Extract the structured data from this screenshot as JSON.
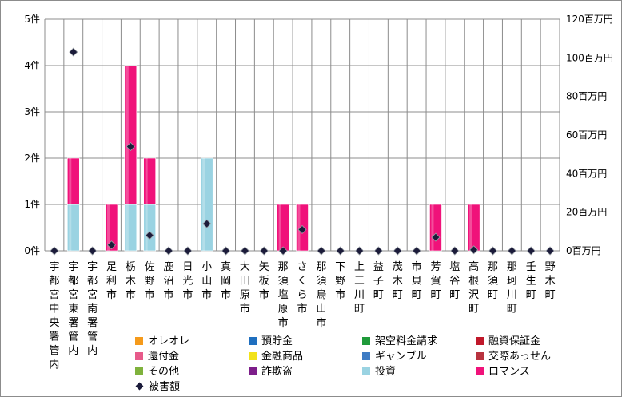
{
  "chart_data": {
    "type": "bar",
    "stacked": true,
    "categories": [
      "宇都宮中央署管内",
      "宇都宮東署管内",
      "宇都宮南署管内",
      "足利市",
      "栃木市",
      "佐野市",
      "鹿沼市",
      "日光市",
      "小山市",
      "真岡市",
      "大田原市",
      "矢板市",
      "那須塩原市",
      "さくら市",
      "那須烏山市",
      "下野市",
      "上三川町",
      "益子町",
      "茂木町",
      "市貝町",
      "芳賀町",
      "塩谷町",
      "高根沢町",
      "那須町",
      "那珂川町",
      "壬生町",
      "野木町"
    ],
    "yaxis_left": {
      "ticks": [
        "0件",
        "1件",
        "2件",
        "3件",
        "4件",
        "5件"
      ],
      "ylim": [
        0,
        5
      ]
    },
    "yaxis_right": {
      "ticks": [
        "0百万円",
        "20百万円",
        "40百万円",
        "60百万円",
        "80百万円",
        "100百万円",
        "120百万円"
      ],
      "ylim": [
        0,
        120
      ]
    },
    "series": [
      {
        "name": "オレオレ",
        "color": "#f59a1b",
        "values": [
          0,
          0,
          0,
          0,
          0,
          0,
          0,
          0,
          0,
          0,
          0,
          0,
          0,
          0,
          0,
          0,
          0,
          0,
          0,
          0,
          0,
          0,
          0,
          0,
          0,
          0,
          0
        ]
      },
      {
        "name": "預貯金",
        "color": "#1f6fbf",
        "values": [
          0,
          0,
          0,
          0,
          0,
          0,
          0,
          0,
          0,
          0,
          0,
          0,
          0,
          0,
          0,
          0,
          0,
          0,
          0,
          0,
          0,
          0,
          0,
          0,
          0,
          0,
          0
        ]
      },
      {
        "name": "架空料金請求",
        "color": "#1f9a3a",
        "values": [
          0,
          0,
          0,
          0,
          0,
          0,
          0,
          0,
          0,
          0,
          0,
          0,
          0,
          0,
          0,
          0,
          0,
          0,
          0,
          0,
          0,
          0,
          0,
          0,
          0,
          0,
          0
        ]
      },
      {
        "name": "融資保証金",
        "color": "#c0182a",
        "values": [
          0,
          0,
          0,
          0,
          0,
          0,
          0,
          0,
          0,
          0,
          0,
          0,
          0,
          0,
          0,
          0,
          0,
          0,
          0,
          0,
          0,
          0,
          0,
          0,
          0,
          0,
          0
        ]
      },
      {
        "name": "還付金",
        "color": "#e75a8a",
        "values": [
          0,
          0,
          0,
          0,
          0,
          0,
          0,
          0,
          0,
          0,
          0,
          0,
          0,
          0,
          0,
          0,
          0,
          0,
          0,
          0,
          0,
          0,
          0,
          0,
          0,
          0,
          0
        ]
      },
      {
        "name": "金融商品",
        "color": "#f2e21a",
        "values": [
          0,
          0,
          0,
          0,
          0,
          0,
          0,
          0,
          0,
          0,
          0,
          0,
          0,
          0,
          0,
          0,
          0,
          0,
          0,
          0,
          0,
          0,
          0,
          0,
          0,
          0,
          0
        ]
      },
      {
        "name": "ギャンブル",
        "color": "#3e7cc4",
        "values": [
          0,
          0,
          0,
          0,
          0,
          0,
          0,
          0,
          0,
          0,
          0,
          0,
          0,
          0,
          0,
          0,
          0,
          0,
          0,
          0,
          0,
          0,
          0,
          0,
          0,
          0,
          0
        ]
      },
      {
        "name": "交際あっせん",
        "color": "#b8333f",
        "values": [
          0,
          0,
          0,
          0,
          0,
          0,
          0,
          0,
          0,
          0,
          0,
          0,
          0,
          0,
          0,
          0,
          0,
          0,
          0,
          0,
          0,
          0,
          0,
          0,
          0,
          0,
          0
        ]
      },
      {
        "name": "その他",
        "color": "#7fb23c",
        "values": [
          0,
          0,
          0,
          0,
          0,
          0,
          0,
          0,
          0,
          0,
          0,
          0,
          0,
          0,
          0,
          0,
          0,
          0,
          0,
          0,
          0,
          0,
          0,
          0,
          0,
          0,
          0
        ]
      },
      {
        "name": "詐欺盗",
        "color": "#7d1e8a",
        "values": [
          0,
          0,
          0,
          0,
          0,
          0,
          0,
          0,
          0,
          0,
          0,
          0,
          0,
          0,
          0,
          0,
          0,
          0,
          0,
          0,
          0,
          0,
          0,
          0,
          0,
          0,
          0
        ]
      },
      {
        "name": "投資",
        "color": "#9ad3e2",
        "values": [
          0,
          1,
          0,
          0,
          1,
          1,
          0,
          0,
          2,
          0,
          0,
          0,
          0,
          0,
          0,
          0,
          0,
          0,
          0,
          0,
          0,
          0,
          0,
          0,
          0,
          0,
          0
        ]
      },
      {
        "name": "ロマンス",
        "color": "#f0127a",
        "values": [
          0,
          1,
          0,
          1,
          3,
          1,
          0,
          0,
          0,
          0,
          0,
          0,
          1,
          1,
          0,
          0,
          0,
          0,
          0,
          0,
          1,
          0,
          1,
          0,
          0,
          0,
          0
        ]
      }
    ],
    "line_series": {
      "name": "被害額",
      "axis": "right",
      "marker": "diamond",
      "color": "#1b1b3a",
      "values": [
        0,
        103,
        0,
        3,
        54,
        8,
        0,
        0,
        14,
        0,
        0,
        0,
        0,
        11,
        0,
        0,
        0,
        0,
        0,
        0,
        7,
        0,
        0.5,
        0,
        0,
        0,
        0
      ]
    },
    "grid": true,
    "legend_position": "bottom"
  }
}
